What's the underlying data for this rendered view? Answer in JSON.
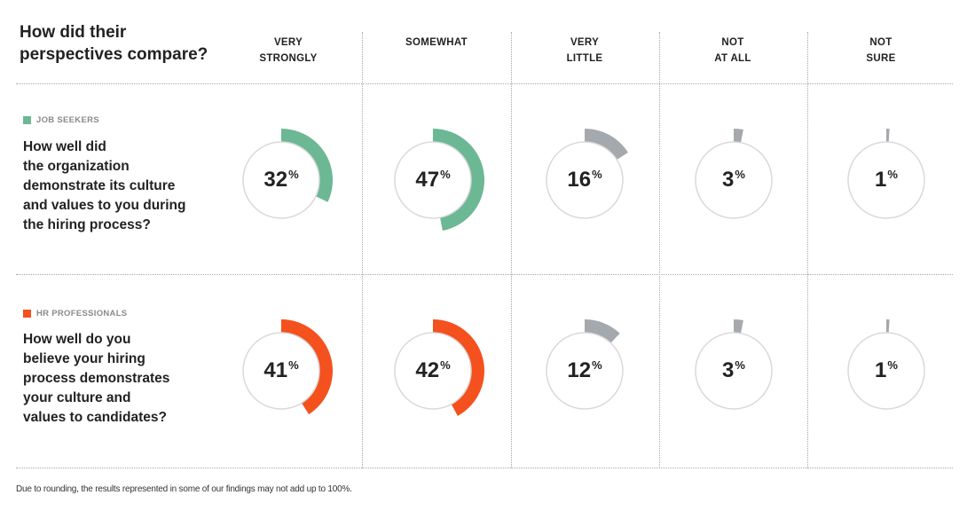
{
  "header": {
    "title": "How did their perspectives compare?"
  },
  "colors": {
    "job_seekers": "#6cb894",
    "hr_professionals": "#f4511e",
    "small_arc": "#a4a9ad",
    "circle_fill": "#ffffff",
    "circle_stroke": "#d9d9d9"
  },
  "chart_data": {
    "type": "donut-grid",
    "categories": [
      {
        "line1": "VERY",
        "line2": "STRONGLY"
      },
      {
        "line1": "SOMEWHAT",
        "line2": ""
      },
      {
        "line1": "VERY",
        "line2": "LITTLE"
      },
      {
        "line1": "NOT",
        "line2": "AT ALL"
      },
      {
        "line1": "NOT",
        "line2": "SURE"
      }
    ],
    "series": [
      {
        "name": "JOB SEEKERS",
        "question": [
          "How well did",
          "the organization",
          "demonstrate its culture",
          "and values to you during",
          "the hiring process?"
        ],
        "values": [
          32,
          47,
          16,
          3,
          1
        ]
      },
      {
        "name": "HR PROFESSIONALS",
        "question": [
          "How well do you",
          "believe your hiring",
          "process demonstrates",
          "your culture and",
          "values to candidates?"
        ],
        "values": [
          41,
          42,
          12,
          3,
          1
        ]
      }
    ],
    "unit": "%",
    "highlight_categories": 2
  },
  "footnote": "Due to rounding, the results represented in some of our findings may not add up to 100%."
}
